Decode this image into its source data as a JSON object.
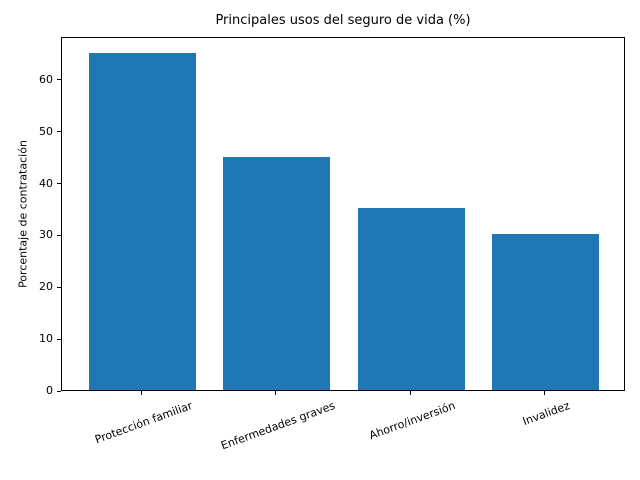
{
  "chart_data": {
    "type": "bar",
    "title": "Principales usos del seguro de vida (%)",
    "ylabel": "Porcentaje de contratación",
    "xlabel": "",
    "categories": [
      "Protección familiar",
      "Enfermedades graves",
      "Ahorro/inversión",
      "Invalidez"
    ],
    "values": [
      65,
      45,
      35,
      30
    ],
    "yticks": [
      0,
      10,
      20,
      30,
      40,
      50,
      60
    ],
    "ylim": [
      0,
      68.25
    ],
    "x_tick_rotation_deg": 20,
    "grid": false,
    "legend": null,
    "bar_color": "#1f77b4",
    "background_color": "#ffffff",
    "axis_color": "#000000"
  }
}
